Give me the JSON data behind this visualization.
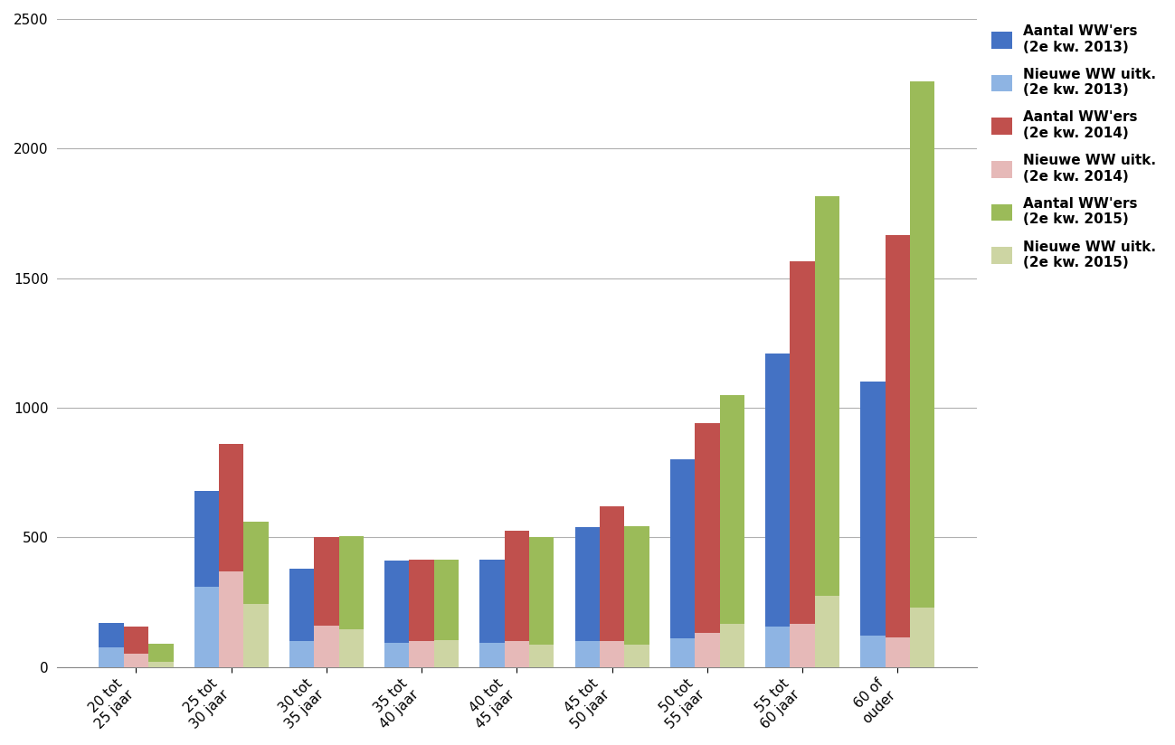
{
  "categories": [
    "20 tot\n25 jaar",
    "25 tot\n30 jaar",
    "30 tot\n35 jaar",
    "35 tot\n40 jaar",
    "40 tot\n45 jaar",
    "45 tot\n50 jaar",
    "50 tot\n55 jaar",
    "55 tot\n60 jaar",
    "60 of\nouder"
  ],
  "aantal_2013": [
    170,
    680,
    380,
    410,
    415,
    540,
    800,
    1210,
    1100
  ],
  "aantal_2014": [
    155,
    860,
    500,
    415,
    525,
    620,
    940,
    1565,
    1665
  ],
  "aantal_2015": [
    90,
    560,
    505,
    415,
    500,
    545,
    1050,
    1815,
    2260
  ],
  "nieuwe_2013": [
    75,
    310,
    100,
    95,
    95,
    100,
    110,
    155,
    120
  ],
  "nieuwe_2014": [
    50,
    370,
    160,
    100,
    100,
    100,
    130,
    165,
    115
  ],
  "nieuwe_2015": [
    20,
    245,
    145,
    105,
    85,
    85,
    165,
    275,
    230
  ],
  "colors": {
    "aantal_2013": "#4472C4",
    "aantal_2014": "#C0504D",
    "aantal_2015": "#9BBB59",
    "nieuwe_2013": "#8EB4E3",
    "nieuwe_2014": "#E6B9B8",
    "nieuwe_2015": "#CDD5A3"
  },
  "legend_labels": [
    "Aantal WW'ers\n(2e kw. 2013)",
    "Aantal WW'ers\n(2e kw. 2014)",
    "Aantal WW'ers\n(2e kw. 2015)",
    "Nieuwe WW uitk.\n(2e kw. 2013)",
    "Nieuwe WW uitk.\n(2e kw. 2014)",
    "Nieuwe WW uitk.\n(2e kw. 2015)"
  ],
  "ylim": [
    0,
    2500
  ],
  "yticks": [
    0,
    500,
    1000,
    1500,
    2000,
    2500
  ],
  "background_color": "#FFFFFF"
}
